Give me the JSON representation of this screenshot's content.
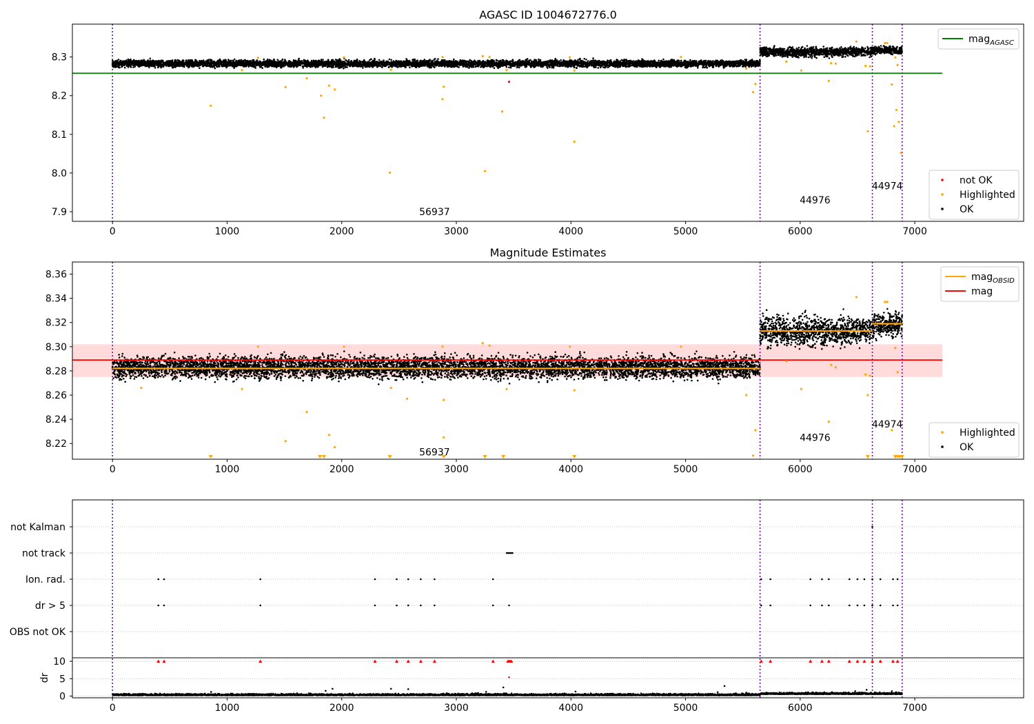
{
  "chart_data": [
    {
      "type": "scatter",
      "title": "AGASC ID 1004672776.0",
      "xlabel": "",
      "ylabel": "",
      "xlim": [
        -350,
        7950
      ],
      "ylim": [
        7.875,
        8.385
      ],
      "xticks": [
        0,
        1000,
        2000,
        3000,
        4000,
        5000,
        6000,
        7000
      ],
      "yticks": [
        7.9,
        8.0,
        8.1,
        8.2,
        8.3
      ],
      "ytick_labels": [
        "7.9",
        "8.0",
        "8.1",
        "8.2",
        "8.3"
      ],
      "obs_boundaries": [
        0,
        5650,
        6630,
        6890
      ],
      "obs_labels": [
        {
          "text": "56937",
          "x": 2810,
          "y": 7.9
        },
        {
          "text": "44976",
          "x": 6130,
          "y": 7.93
        },
        {
          "text": "44974",
          "x": 6760,
          "y": 7.967
        }
      ],
      "reference_lines": [
        {
          "name": "mag_AGASC",
          "y": 8.258,
          "x": [
            -350,
            7240
          ],
          "color": "#008000"
        }
      ],
      "legend_top": {
        "entries": [
          {
            "label": "mag",
            "sub": "AGASC",
            "color": "#008000"
          }
        ],
        "placement": "top-right"
      },
      "legend_bottom": {
        "entries": [
          {
            "label": "not OK",
            "color": "#ff0000"
          },
          {
            "label": "Highlighted",
            "color": "#ffa500"
          },
          {
            "label": "OK",
            "color": "#000000"
          }
        ],
        "placement": "lower-right"
      },
      "segments": [
        {
          "x": [
            0,
            5650
          ],
          "level": 8.283,
          "spread": 0.0045
        },
        {
          "x": [
            5650,
            6630
          ],
          "level": 8.313,
          "spread": 0.006
        },
        {
          "x": [
            6630,
            6890
          ],
          "level": 8.318,
          "spread": 0.005
        }
      ],
      "series": [
        {
          "name": "Highlighted",
          "color": "#ffa500",
          "points": [
            [
              857,
              8.174
            ],
            [
              1510,
              8.222
            ],
            [
              1695,
              8.245
            ],
            [
              1820,
              8.2
            ],
            [
              1845,
              8.143
            ],
            [
              1890,
              8.226
            ],
            [
              1940,
              8.216
            ],
            [
              2420,
              8.001
            ],
            [
              2880,
              8.191
            ],
            [
              2890,
              8.223
            ],
            [
              3250,
              8.005
            ],
            [
              3400,
              8.159
            ],
            [
              4030,
              8.081
            ],
            [
              5590,
              8.209
            ],
            [
              5610,
              8.23
            ],
            [
              6010,
              8.265
            ],
            [
              6250,
              8.238
            ],
            [
              6590,
              8.108
            ],
            [
              6800,
              8.229
            ],
            [
              6840,
              8.163
            ],
            [
              6820,
              8.121
            ],
            [
              6860,
              8.132
            ],
            [
              6880,
              8.052
            ],
            [
              6270,
              8.284
            ],
            [
              6310,
              8.283
            ],
            [
              6490,
              8.34
            ],
            [
              6570,
              8.277
            ],
            [
              6610,
              8.276
            ],
            [
              6740,
              8.336
            ],
            [
              6760,
              8.336
            ],
            [
              6830,
              8.299
            ],
            [
              6850,
              8.279
            ],
            [
              5880,
              8.288
            ],
            [
              1270,
              8.298
            ],
            [
              2020,
              8.299
            ],
            [
              2880,
              8.3
            ],
            [
              3230,
              8.302
            ],
            [
              3290,
              8.3
            ],
            [
              3990,
              8.299
            ],
            [
              4960,
              8.3
            ],
            [
              4030,
              8.265
            ],
            [
              3440,
              8.266
            ],
            [
              2430,
              8.267
            ],
            [
              1130,
              8.266
            ],
            [
              5530,
              8.27
            ]
          ]
        },
        {
          "name": "not OK",
          "color": "#ff0000",
          "points": [
            [
              3460,
              8.236
            ]
          ]
        }
      ]
    },
    {
      "type": "scatter",
      "title": "Magnitude Estimates",
      "xlabel": "",
      "ylabel": "",
      "xlim": [
        -350,
        7950
      ],
      "ylim": [
        8.207,
        8.37
      ],
      "xticks": [
        0,
        1000,
        2000,
        3000,
        4000,
        5000,
        6000,
        7000
      ],
      "yticks": [
        8.22,
        8.24,
        8.26,
        8.28,
        8.3,
        8.32,
        8.34,
        8.36
      ],
      "ytick_labels": [
        "8.22",
        "8.24",
        "8.26",
        "8.28",
        "8.30",
        "8.32",
        "8.34",
        "8.36"
      ],
      "obs_boundaries": [
        0,
        5650,
        6630,
        6890
      ],
      "obs_labels": [
        {
          "text": "56937",
          "x": 2810,
          "y": 8.213
        },
        {
          "text": "44976",
          "x": 6130,
          "y": 8.225
        },
        {
          "text": "44974",
          "x": 6760,
          "y": 8.236
        }
      ],
      "band": {
        "y": [
          8.275,
          8.302
        ],
        "x": [
          -350,
          7240
        ],
        "color": "#ffcccc"
      },
      "reference_lines": [
        {
          "name": "mag",
          "y": 8.289,
          "x": [
            -350,
            7240
          ],
          "color": "#ff0000"
        }
      ],
      "obs_mag_lines": [
        {
          "x": [
            0,
            5650
          ],
          "y": 8.282
        },
        {
          "x": [
            5650,
            6630
          ],
          "y": 8.313
        },
        {
          "x": [
            6630,
            6890
          ],
          "y": 8.319
        }
      ],
      "legend_top": {
        "entries": [
          {
            "label": "mag",
            "sub": "OBSID",
            "color": "#ffa500"
          },
          {
            "label": "mag",
            "sub": "",
            "color": "#ff0000"
          }
        ],
        "placement": "top-right"
      },
      "legend_bottom": {
        "entries": [
          {
            "label": "Highlighted",
            "color": "#ffa500"
          },
          {
            "label": "OK",
            "color": "#000000"
          }
        ],
        "placement": "lower-right"
      },
      "segments": [
        {
          "x": [
            0,
            5650
          ],
          "level": 8.283,
          "spread": 0.0045
        },
        {
          "x": [
            5650,
            6630
          ],
          "level": 8.313,
          "spread": 0.006
        },
        {
          "x": [
            6630,
            6890
          ],
          "level": 8.318,
          "spread": 0.005
        }
      ],
      "series": [
        {
          "name": "Highlighted",
          "color": "#ffa500",
          "points": [
            [
              1510,
              8.222
            ],
            [
              1695,
              8.246
            ],
            [
              1890,
              8.227
            ],
            [
              1940,
              8.217
            ],
            [
              2890,
              8.225
            ],
            [
              5590,
              8.21
            ],
            [
              5610,
              8.231
            ],
            [
              6250,
              8.238
            ],
            [
              6800,
              8.231
            ],
            [
              6010,
              8.265
            ],
            [
              6570,
              8.277
            ],
            [
              6610,
              8.276
            ],
            [
              6590,
              8.26
            ],
            [
              6270,
              8.285
            ],
            [
              6310,
              8.283
            ],
            [
              6490,
              8.341
            ],
            [
              6740,
              8.337
            ],
            [
              6760,
              8.337
            ],
            [
              6830,
              8.299
            ],
            [
              6850,
              8.279
            ],
            [
              5880,
              8.288
            ],
            [
              1270,
              8.3
            ],
            [
              2020,
              8.3
            ],
            [
              2880,
              8.3
            ],
            [
              3230,
              8.303
            ],
            [
              3290,
              8.301
            ],
            [
              3990,
              8.3
            ],
            [
              4960,
              8.3
            ],
            [
              4030,
              8.264
            ],
            [
              3440,
              8.265
            ],
            [
              2430,
              8.266
            ],
            [
              1130,
              8.265
            ],
            [
              5530,
              8.26
            ],
            [
              2570,
              8.257
            ],
            [
              2890,
              8.256
            ],
            [
              250,
              8.266
            ]
          ]
        }
      ],
      "below_range_markers": [
        857,
        1810,
        1845,
        2420,
        2890,
        3250,
        3410,
        4030,
        6590,
        6830,
        6850,
        6870,
        6890
      ]
    },
    {
      "type": "scatter",
      "title": "",
      "xlabel": "",
      "ylabel": "dr",
      "xlim": [
        -350,
        7950
      ],
      "ylim": [
        -0.5,
        11
      ],
      "xticks": [
        0,
        1000,
        2000,
        3000,
        4000,
        5000,
        6000,
        7000
      ],
      "yticks": [
        0,
        5,
        10
      ],
      "ytick_labels": [
        "0",
        "5",
        "10"
      ],
      "flag_rows": [
        "not Kalman",
        "not track",
        "Ion. rad.",
        "dr > 5",
        "OBS not OK"
      ],
      "obs_boundaries": [
        0,
        5650,
        6630,
        6890
      ],
      "flag_events": {
        "not Kalman": [
          6630
        ],
        "not track": [
          3440,
          3450,
          3460,
          3470,
          3480,
          3490
        ],
        "Ion. rad.": [
          400,
          450,
          1290,
          2290,
          2480,
          2580,
          2690,
          2810,
          3320,
          5660,
          5740,
          6090,
          6190,
          6250,
          6430,
          6500,
          6560,
          6630,
          6700,
          6810,
          6850
        ],
        "dr > 5": [
          400,
          450,
          1290,
          2290,
          2480,
          2580,
          2690,
          2810,
          3320,
          3460,
          5660,
          5740,
          6090,
          6190,
          6250,
          6430,
          6500,
          6560,
          6630,
          6700,
          6810,
          6850
        ],
        "OBS not OK": []
      },
      "dr_outliers": [
        [
          400,
          10
        ],
        [
          450,
          10
        ],
        [
          1290,
          10
        ],
        [
          2290,
          10
        ],
        [
          2480,
          10
        ],
        [
          2580,
          10
        ],
        [
          2690,
          10
        ],
        [
          2810,
          10
        ],
        [
          3320,
          10
        ],
        [
          3450,
          10
        ],
        [
          3460,
          10
        ],
        [
          3470,
          10
        ],
        [
          3480,
          10
        ],
        [
          5660,
          10
        ],
        [
          5740,
          10
        ],
        [
          6090,
          10
        ],
        [
          6190,
          10
        ],
        [
          6250,
          10
        ],
        [
          6430,
          10
        ],
        [
          6500,
          10
        ],
        [
          6560,
          10
        ],
        [
          6630,
          10
        ],
        [
          6700,
          10
        ],
        [
          6810,
          10
        ],
        [
          6850,
          10
        ],
        [
          3460,
          5.4
        ]
      ],
      "dr_spikes": [
        [
          860,
          1.2
        ],
        [
          1860,
          1.5
        ],
        [
          1920,
          2.1
        ],
        [
          2430,
          2.1
        ],
        [
          2580,
          2.0
        ],
        [
          3190,
          0.9
        ],
        [
          3260,
          1.2
        ],
        [
          3410,
          2.5
        ],
        [
          4040,
          1.3
        ],
        [
          5280,
          1.1
        ],
        [
          5340,
          2.9
        ],
        [
          5530,
          1.0
        ],
        [
          6210,
          1.1
        ],
        [
          6480,
          1.4
        ],
        [
          6580,
          1.8
        ],
        [
          6800,
          1.4
        ],
        [
          6840,
          1.1
        ]
      ]
    }
  ]
}
